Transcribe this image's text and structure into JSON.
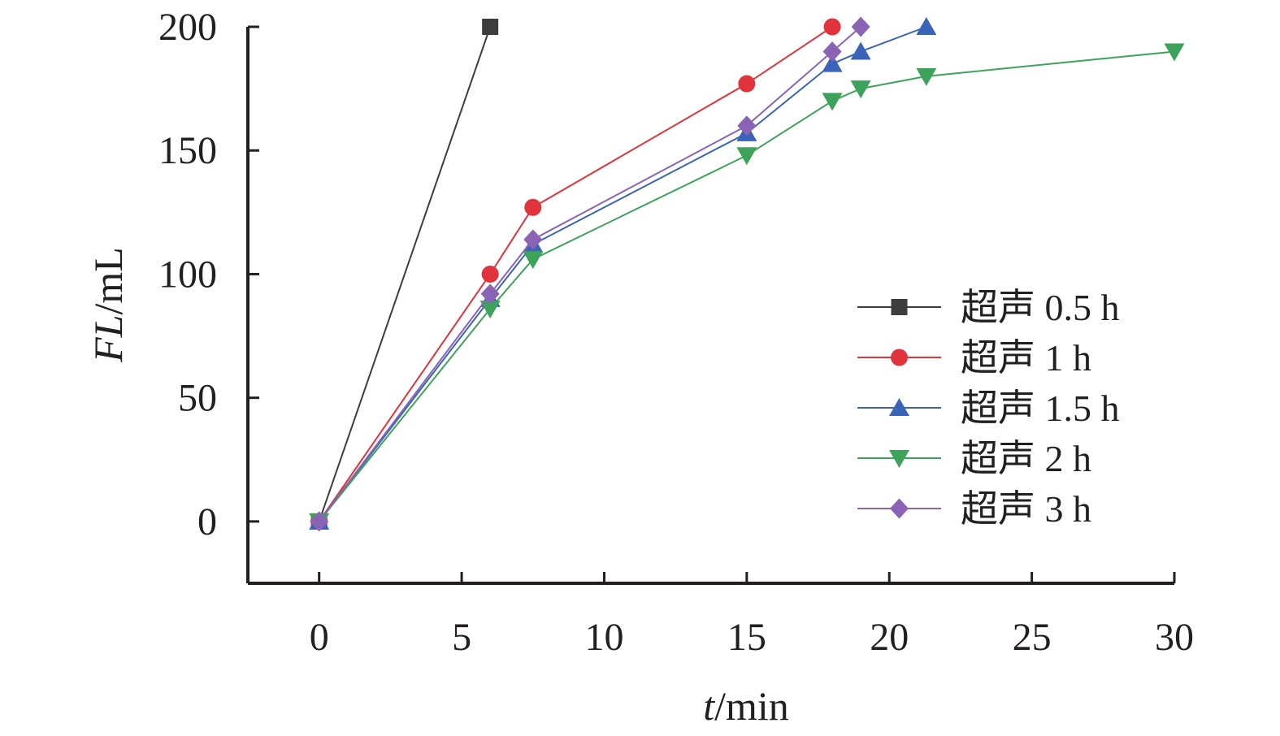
{
  "chart_data": {
    "type": "line",
    "xlabel_var": "t",
    "xlabel_unit": "/min",
    "ylabel_var": "FL",
    "ylabel_unit": "/mL",
    "xlim": [
      -2.5,
      30
    ],
    "ylim": [
      -25,
      200
    ],
    "xticks": [
      0,
      5,
      10,
      15,
      20,
      25,
      30
    ],
    "yticks": [
      0,
      50,
      100,
      150,
      200
    ],
    "xtick_labels": [
      "0",
      "5",
      "10",
      "15",
      "20",
      "25",
      "30"
    ],
    "ytick_labels": [
      "0",
      "50",
      "100",
      "150",
      "200"
    ],
    "legend_position": "center-right",
    "grid": false,
    "series": [
      {
        "name": "超声 0.5 h",
        "color": "#3d3d3f",
        "marker": "square",
        "x": [
          0,
          6
        ],
        "y": [
          0,
          200
        ]
      },
      {
        "name": "超声 1 h",
        "color": "#e0333b",
        "marker": "circle",
        "x": [
          0,
          6,
          7.5,
          15,
          18
        ],
        "y": [
          0,
          100,
          127,
          177,
          200
        ]
      },
      {
        "name": "超声 1.5 h",
        "color": "#3a64b8",
        "marker": "triangle-up",
        "x": [
          0,
          6,
          7.5,
          15,
          18,
          19,
          21.3
        ],
        "y": [
          0,
          90,
          112,
          157,
          185,
          190,
          200
        ]
      },
      {
        "name": "超声 2 h",
        "color": "#3da35a",
        "marker": "triangle-down",
        "x": [
          0,
          6,
          7.5,
          15,
          18,
          19,
          21.3,
          30
        ],
        "y": [
          0,
          86,
          106,
          148,
          170,
          175,
          180,
          190
        ]
      },
      {
        "name": "超声 3 h",
        "color": "#8a63b5",
        "marker": "diamond",
        "x": [
          0,
          6,
          7.5,
          15,
          18,
          19
        ],
        "y": [
          0,
          92,
          114,
          160,
          190,
          200
        ]
      }
    ]
  }
}
